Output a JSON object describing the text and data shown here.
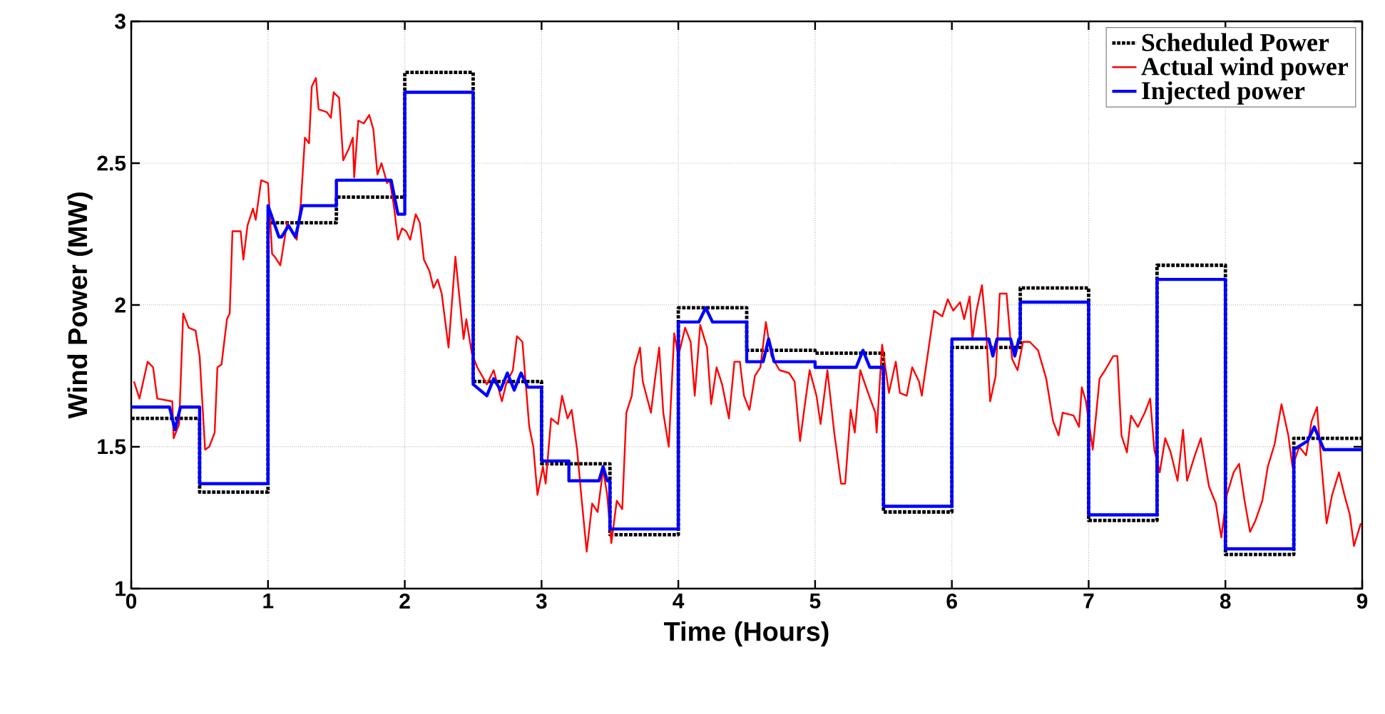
{
  "chart_data": {
    "type": "line",
    "xlabel": "Time (Hours)",
    "ylabel": "Wind Power (MW)",
    "xlim": [
      0,
      9
    ],
    "ylim": [
      1,
      3
    ],
    "xticks": [
      0,
      1,
      2,
      3,
      4,
      5,
      6,
      7,
      8,
      9
    ],
    "yticks": [
      1,
      1.5,
      2,
      2.5,
      3
    ],
    "grid": true,
    "legend": "top right",
    "series": [
      {
        "name": "Scheduled Power",
        "type": "step",
        "color": "#000000",
        "line_style": "dotted",
        "x": [
          0,
          0.5,
          1,
          1.5,
          2,
          2.5,
          3,
          3.5,
          4,
          4.5,
          5,
          5.5,
          6,
          6.5,
          7,
          7.5,
          8,
          8.5,
          9
        ],
        "values": [
          1.6,
          1.34,
          2.29,
          2.38,
          2.82,
          1.73,
          1.44,
          1.19,
          1.99,
          1.84,
          1.83,
          1.27,
          1.85,
          2.06,
          1.24,
          2.14,
          1.12,
          1.53,
          1.53
        ]
      },
      {
        "name": "Actual wind power",
        "color": "#ff0000",
        "line_style": "solid",
        "x": [
          0.02,
          0.06,
          0.12,
          0.16,
          0.19,
          0.3,
          0.31,
          0.35,
          0.38,
          0.42,
          0.47,
          0.5,
          0.54,
          0.57,
          0.61,
          0.63,
          0.66,
          0.7,
          0.72,
          0.74,
          0.8,
          0.82,
          0.85,
          0.89,
          0.91,
          0.95,
          1.0,
          1.03,
          1.05,
          1.09,
          1.14,
          1.17,
          1.21,
          1.24,
          1.27,
          1.3,
          1.32,
          1.35,
          1.37,
          1.43,
          1.46,
          1.48,
          1.52,
          1.55,
          1.59,
          1.62,
          1.63,
          1.66,
          1.7,
          1.74,
          1.77,
          1.8,
          1.83,
          1.87,
          1.89,
          1.92,
          1.95,
          1.98,
          2.01,
          2.04,
          2.08,
          2.11,
          2.14,
          2.18,
          2.21,
          2.24,
          2.27,
          2.32,
          2.37,
          2.43,
          2.45,
          2.49,
          2.53,
          2.6,
          2.65,
          2.71,
          2.74,
          2.79,
          2.82,
          2.86,
          2.91,
          2.94,
          2.97,
          3.01,
          3.03,
          3.07,
          3.12,
          3.15,
          3.19,
          3.22,
          3.26,
          3.29,
          3.33,
          3.37,
          3.41,
          3.45,
          3.48,
          3.51,
          3.55,
          3.59,
          3.62,
          3.66,
          3.68,
          3.72,
          3.74,
          3.8,
          3.83,
          3.86,
          3.89,
          3.93,
          3.97,
          4.0,
          4.05,
          4.09,
          4.12,
          4.16,
          4.21,
          4.24,
          4.28,
          4.32,
          4.37,
          4.41,
          4.45,
          4.48,
          4.52,
          4.56,
          4.6,
          4.64,
          4.68,
          4.74,
          4.81,
          4.85,
          4.89,
          4.92,
          4.96,
          5.01,
          5.04,
          5.09,
          5.14,
          5.19,
          5.22,
          5.26,
          5.29,
          5.33,
          5.38,
          5.44,
          5.45,
          5.49,
          5.54,
          5.59,
          5.62,
          5.67,
          5.71,
          5.76,
          5.78,
          5.81,
          5.87,
          5.93,
          5.97,
          6.01,
          6.06,
          6.09,
          6.13,
          6.15,
          6.18,
          6.22,
          6.25,
          6.28,
          6.32,
          6.35,
          6.4,
          6.44,
          6.48,
          6.52,
          6.57,
          6.63,
          6.69,
          6.74,
          6.78,
          6.81,
          6.89,
          6.93,
          6.95,
          6.98,
          7.03,
          7.08,
          7.12,
          7.18,
          7.21,
          7.24,
          7.28,
          7.31,
          7.36,
          7.41,
          7.45,
          7.48,
          7.52,
          7.56,
          7.6,
          7.65,
          7.69,
          7.72,
          7.77,
          7.82,
          7.88,
          7.93,
          7.97,
          8.01,
          8.06,
          8.1,
          8.14,
          8.18,
          8.22,
          8.27,
          8.31,
          8.36,
          8.41,
          8.46,
          8.49,
          8.54,
          8.59,
          8.63,
          8.67,
          8.7,
          8.74,
          8.78,
          8.83,
          8.87,
          8.91,
          8.94,
          8.99
        ],
        "values": [
          1.73,
          1.67,
          1.8,
          1.78,
          1.67,
          1.66,
          1.53,
          1.58,
          1.97,
          1.92,
          1.91,
          1.82,
          1.49,
          1.5,
          1.55,
          1.78,
          1.79,
          1.95,
          1.97,
          2.26,
          2.26,
          2.16,
          2.28,
          2.34,
          2.3,
          2.44,
          2.43,
          2.18,
          2.17,
          2.14,
          2.29,
          2.26,
          2.23,
          2.36,
          2.59,
          2.57,
          2.77,
          2.8,
          2.69,
          2.68,
          2.66,
          2.75,
          2.73,
          2.51,
          2.55,
          2.59,
          2.45,
          2.65,
          2.64,
          2.67,
          2.62,
          2.46,
          2.5,
          2.43,
          2.44,
          2.35,
          2.23,
          2.27,
          2.26,
          2.23,
          2.32,
          2.29,
          2.16,
          2.12,
          2.06,
          2.09,
          2.04,
          1.85,
          2.17,
          1.88,
          1.95,
          1.83,
          1.78,
          1.72,
          1.77,
          1.66,
          1.72,
          1.77,
          1.89,
          1.87,
          1.57,
          1.5,
          1.33,
          1.43,
          1.37,
          1.6,
          1.58,
          1.68,
          1.6,
          1.63,
          1.49,
          1.33,
          1.13,
          1.3,
          1.27,
          1.42,
          1.33,
          1.16,
          1.31,
          1.28,
          1.62,
          1.68,
          1.78,
          1.85,
          1.73,
          1.62,
          1.74,
          1.85,
          1.62,
          1.5,
          1.9,
          1.82,
          1.92,
          1.87,
          1.68,
          1.93,
          1.85,
          1.65,
          1.78,
          1.72,
          1.6,
          1.8,
          1.8,
          1.68,
          1.63,
          1.75,
          1.78,
          1.94,
          1.82,
          1.77,
          1.76,
          1.73,
          1.52,
          1.63,
          1.77,
          1.68,
          1.58,
          1.77,
          1.55,
          1.37,
          1.37,
          1.63,
          1.55,
          1.77,
          1.7,
          1.62,
          1.55,
          1.86,
          1.69,
          1.8,
          1.69,
          1.68,
          1.78,
          1.73,
          1.68,
          1.78,
          1.98,
          1.96,
          2.02,
          1.98,
          2.01,
          1.95,
          2.03,
          1.88,
          1.98,
          2.07,
          1.91,
          1.66,
          1.75,
          2.04,
          2.04,
          1.81,
          1.77,
          1.87,
          1.87,
          1.84,
          1.74,
          1.59,
          1.54,
          1.62,
          1.61,
          1.57,
          1.71,
          1.66,
          1.49,
          1.74,
          1.77,
          1.82,
          1.82,
          1.54,
          1.48,
          1.61,
          1.57,
          1.62,
          1.67,
          1.49,
          1.41,
          1.53,
          1.48,
          1.38,
          1.56,
          1.38,
          1.46,
          1.53,
          1.36,
          1.3,
          1.18,
          1.33,
          1.41,
          1.44,
          1.31,
          1.2,
          1.24,
          1.31,
          1.43,
          1.51,
          1.65,
          1.54,
          1.43,
          1.5,
          1.47,
          1.59,
          1.64,
          1.45,
          1.23,
          1.33,
          1.41,
          1.33,
          1.26,
          1.15,
          1.23
        ]
      },
      {
        "name": "Injected power",
        "color": "#0000ff",
        "line_style": "solid",
        "x": [
          0,
          0.28,
          0.32,
          0.36,
          0.5,
          0.5,
          1.0,
          1.0,
          1.08,
          1.1,
          1.15,
          1.2,
          1.22,
          1.25,
          1.5,
          1.5,
          1.9,
          1.95,
          2.0,
          2.0,
          2.5,
          2.5,
          2.6,
          2.65,
          2.7,
          2.75,
          2.8,
          2.85,
          2.9,
          3.0,
          3.0,
          3.2,
          3.2,
          3.42,
          3.45,
          3.48,
          3.5,
          3.5,
          4.0,
          4.0,
          4.15,
          4.2,
          4.25,
          4.5,
          4.5,
          4.62,
          4.66,
          4.7,
          5.0,
          5.0,
          5.3,
          5.35,
          5.4,
          5.5,
          5.5,
          6.0,
          6.0,
          6.27,
          6.3,
          6.33,
          6.43,
          6.46,
          6.49,
          6.5,
          6.5,
          7.0,
          7.0,
          7.5,
          7.5,
          8.0,
          8.0,
          8.5,
          8.5,
          8.6,
          8.65,
          8.72,
          9.0
        ],
        "values": [
          1.64,
          1.64,
          1.56,
          1.64,
          1.64,
          1.37,
          1.37,
          2.35,
          2.24,
          2.24,
          2.28,
          2.24,
          2.28,
          2.35,
          2.35,
          2.44,
          2.44,
          2.32,
          2.32,
          2.75,
          2.75,
          1.72,
          1.68,
          1.74,
          1.7,
          1.76,
          1.7,
          1.76,
          1.71,
          1.71,
          1.45,
          1.45,
          1.38,
          1.38,
          1.43,
          1.38,
          1.38,
          1.21,
          1.21,
          1.94,
          1.94,
          1.99,
          1.94,
          1.94,
          1.8,
          1.8,
          1.88,
          1.8,
          1.8,
          1.78,
          1.78,
          1.84,
          1.78,
          1.78,
          1.29,
          1.29,
          1.88,
          1.88,
          1.82,
          1.88,
          1.88,
          1.82,
          1.88,
          1.88,
          2.01,
          2.01,
          1.26,
          1.26,
          2.09,
          2.09,
          1.14,
          1.14,
          1.49,
          1.52,
          1.57,
          1.49,
          1.49
        ]
      }
    ]
  }
}
